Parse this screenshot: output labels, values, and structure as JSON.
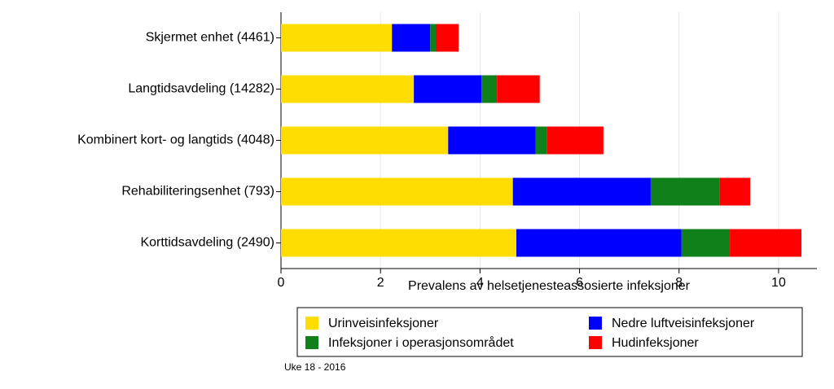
{
  "chart_data": {
    "type": "stacked-bar-horizontal",
    "xlabel": "Prevalens av helsetjenesteassosierte infeksjoner",
    "note": "Uke 18 - 2016",
    "categories": [
      "Skjermet enhet (4461)",
      "Langtidsavdeling (14282)",
      "Kombinert kort- og langtids (4048)",
      "Rehabiliteringsenhet (793)",
      "Korttidsavdeling (2490)"
    ],
    "series": [
      {
        "name": "Urinveisinfeksjoner",
        "color": "#ffdd00",
        "values": [
          2.23,
          2.67,
          3.36,
          4.66,
          4.73
        ]
      },
      {
        "name": "Nedre luftveisinfeksjoner",
        "color": "#0000ff",
        "values": [
          0.77,
          1.36,
          1.76,
          2.77,
          3.32
        ]
      },
      {
        "name": "Infeksjoner i operasjonsområdet",
        "color": "#10801a",
        "values": [
          0.11,
          0.31,
          0.22,
          1.39,
          0.97
        ]
      },
      {
        "name": "Hudinfeksjoner",
        "color": "#ff0000",
        "values": [
          0.46,
          0.86,
          1.14,
          0.61,
          1.44
        ]
      }
    ],
    "xlim": [
      0,
      10.77
    ],
    "xticks": [
      0,
      2,
      4,
      6,
      8,
      10
    ],
    "grid": true
  }
}
